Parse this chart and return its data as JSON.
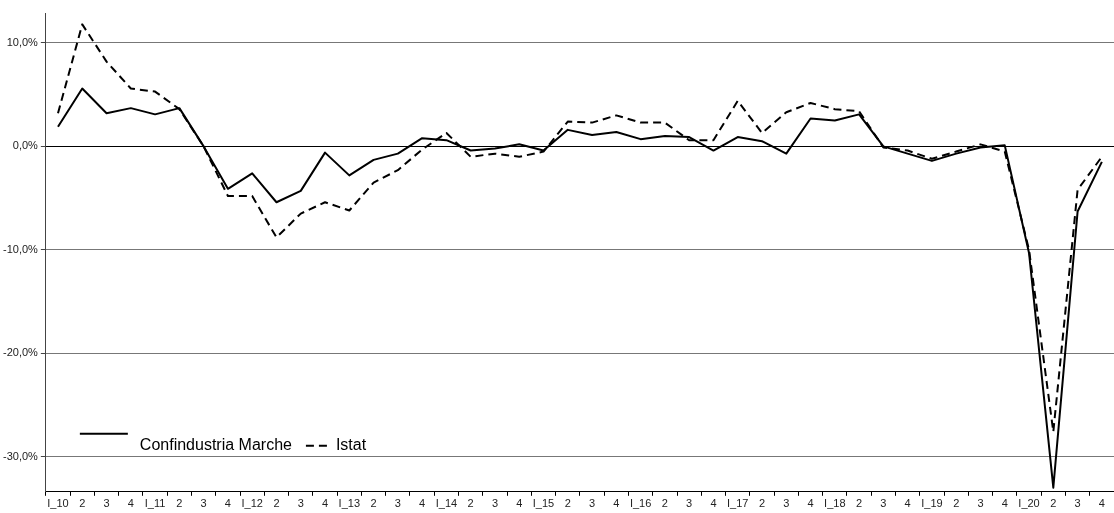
{
  "chart_data": {
    "type": "line",
    "categories": [
      "I_10",
      "2",
      "3",
      "4",
      "I_11",
      "2",
      "3",
      "4",
      "I_12",
      "2",
      "3",
      "4",
      "I_13",
      "2",
      "3",
      "4",
      "I_14",
      "2",
      "3",
      "4",
      "I_15",
      "2",
      "3",
      "4",
      "I_16",
      "2",
      "3",
      "4",
      "I_17",
      "2",
      "3",
      "4",
      "I_18",
      "2",
      "3",
      "4",
      "I_19",
      "2",
      "3",
      "4",
      "I_20",
      "2",
      "3",
      "4"
    ],
    "series": [
      {
        "name": "Confindustria Marche",
        "color": "#000000",
        "line_style": "solid",
        "values": [
          1.9,
          5.6,
          3.2,
          3.7,
          3.1,
          3.7,
          0.0,
          -4.1,
          -2.6,
          -5.4,
          -4.3,
          -0.6,
          -2.8,
          -1.3,
          -0.7,
          0.8,
          0.6,
          -0.4,
          -0.2,
          0.2,
          -0.4,
          1.6,
          1.1,
          1.4,
          0.7,
          1.0,
          0.9,
          -0.4,
          0.9,
          0.5,
          -0.7,
          2.7,
          2.5,
          3.1,
          0.0,
          -0.7,
          -1.4,
          -0.7,
          -0.1,
          0.1,
          -10.3,
          -33.0,
          -6.3,
          -1.5
        ]
      },
      {
        "name": "Istat",
        "color": "#000000",
        "line_style": "dashed",
        "values": [
          3.2,
          11.8,
          8.2,
          5.6,
          5.3,
          3.6,
          0.0,
          -4.8,
          -4.8,
          -8.8,
          -6.5,
          -5.4,
          -6.2,
          -3.5,
          -2.3,
          -0.3,
          1.3,
          -1.0,
          -0.7,
          -1.0,
          -0.5,
          2.4,
          2.3,
          3.0,
          2.3,
          2.3,
          0.6,
          0.6,
          4.4,
          1.3,
          3.3,
          4.2,
          3.6,
          3.4,
          -0.1,
          -0.4,
          -1.2,
          -0.5,
          0.2,
          -0.5,
          -10.0,
          -27.6,
          -4.2,
          -1.0
        ]
      }
    ],
    "ylim": [
      -33.4,
      12.9
    ],
    "yticks": [
      {
        "value": 10,
        "label": "10,0%"
      },
      {
        "value": 0,
        "label": "0,0%"
      },
      {
        "value": -10,
        "label": "-10,0%"
      },
      {
        "value": -20,
        "label": "-20,0%"
      },
      {
        "value": -30,
        "label": "-30,0%"
      }
    ],
    "grid": "y",
    "legend": "bottom left",
    "marker": "none"
  }
}
